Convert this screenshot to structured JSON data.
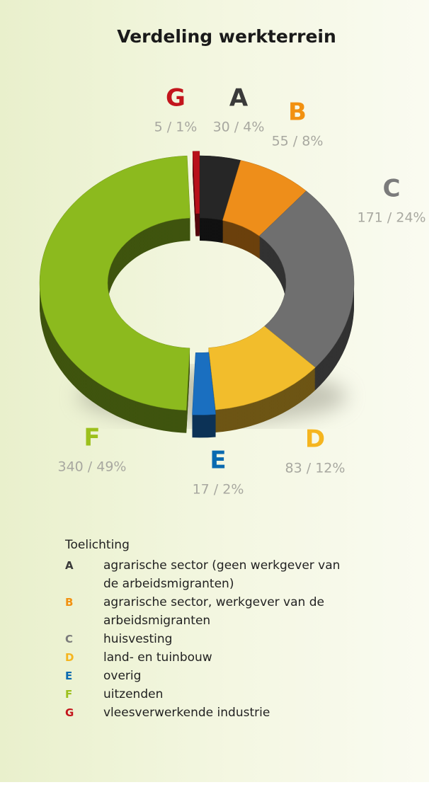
{
  "chart_data": {
    "type": "pie",
    "title": "Verdeling werkterrein",
    "categories": [
      "A",
      "B",
      "C",
      "D",
      "E",
      "F",
      "G"
    ],
    "values": [
      30,
      55,
      171,
      83,
      17,
      340,
      5
    ],
    "value_labels": [
      "30 / 4%",
      "55 / 8%",
      "171 / 24%",
      "83 / 12%",
      "17 / 2%",
      "340 / 49%",
      "5 / 1%"
    ],
    "colors": [
      "#262626",
      "#ee8e1a",
      "#6f6f6f",
      "#f2bd2c",
      "#1a6fc0",
      "#8cba1e",
      "#b8101a"
    ],
    "label_colors": [
      "#3a3a3a",
      "#f29111",
      "#7b7b7b",
      "#f5b51f",
      "#0a6ab0",
      "#9cc01c",
      "#c3151c"
    ],
    "legend_title": "Toelichting",
    "descriptions": [
      "agrarische sector (geen werkgever van de arbeidsmigranten)",
      "agrarische sector, werkgever van de arbeidsmigranten",
      "huisvesting",
      "land- en tuinbouw",
      "overig",
      "uitzenden",
      "vleesverwerkende industrie"
    ]
  }
}
